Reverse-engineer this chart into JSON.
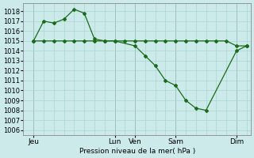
{
  "bg_color": "#cceaea",
  "grid_color": "#aad4d4",
  "line_color": "#1a6b1a",
  "marker_color": "#1a6b1a",
  "xlabel": "Pression niveau de la mer( hPa )",
  "ylim": [
    1005.5,
    1018.8
  ],
  "yticks": [
    1006,
    1007,
    1008,
    1009,
    1010,
    1011,
    1012,
    1013,
    1014,
    1015,
    1016,
    1017,
    1018
  ],
  "xtick_labels": [
    "Jeu",
    "",
    "Lun",
    "Ven",
    "",
    "Sam",
    "",
    "Dim"
  ],
  "xtick_positions": [
    0.5,
    3.5,
    4.5,
    5.5,
    6.5,
    7.5,
    9.0,
    10.5
  ],
  "vlines": [
    0.5,
    4.5,
    5.5,
    7.5,
    10.5
  ],
  "xlim": [
    0.0,
    11.2
  ],
  "series1_x": [
    0.5,
    1.0,
    1.5,
    2.0,
    2.5,
    3.0,
    3.5,
    4.0,
    4.5,
    5.5,
    6.0,
    6.5,
    7.0,
    7.5,
    8.0,
    8.5,
    9.0,
    10.5,
    11.0
  ],
  "series1_y": [
    1015.0,
    1017.0,
    1016.8,
    1017.2,
    1018.2,
    1017.8,
    1015.2,
    1015.0,
    1015.0,
    1014.5,
    1013.5,
    1012.5,
    1011.0,
    1010.5,
    1009.0,
    1008.2,
    1008.0,
    1014.0,
    1014.5
  ],
  "series2_x": [
    0.5,
    1.0,
    1.5,
    2.0,
    2.5,
    3.0,
    3.5,
    4.0,
    4.5,
    5.0,
    5.5,
    6.0,
    6.5,
    7.0,
    7.5,
    8.0,
    8.5,
    9.0,
    9.5,
    10.0,
    10.5,
    11.0
  ],
  "series2_y": [
    1015.0,
    1015.0,
    1015.0,
    1015.0,
    1015.0,
    1015.0,
    1015.0,
    1015.0,
    1015.0,
    1015.0,
    1015.0,
    1015.0,
    1015.0,
    1015.0,
    1015.0,
    1015.0,
    1015.0,
    1015.0,
    1015.0,
    1015.0,
    1014.5,
    1014.5
  ]
}
